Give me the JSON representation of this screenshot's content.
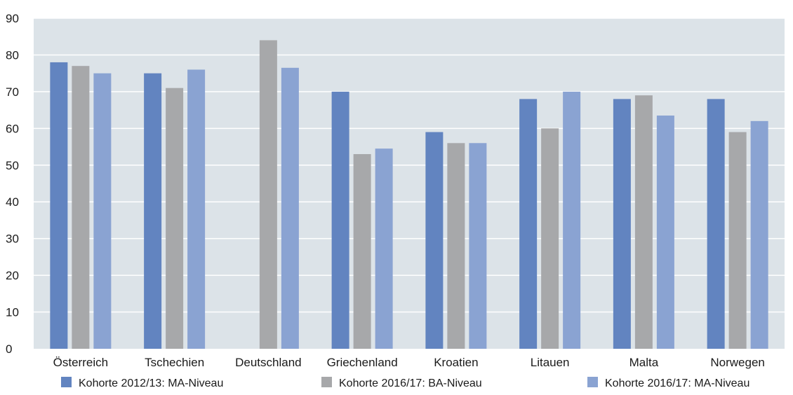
{
  "chart_data": {
    "type": "bar",
    "categories": [
      "Österreich",
      "Tschechien",
      "Deutschland",
      "Griechenland",
      "Kroatien",
      "Litauen",
      "Malta",
      "Norwegen"
    ],
    "series": [
      {
        "name": "Kohorte 2012/13: MA-Niveau",
        "color": "#6284c0",
        "values": [
          78,
          75,
          null,
          70,
          59,
          68,
          68,
          68
        ]
      },
      {
        "name": "Kohorte 2016/17: BA-Niveau",
        "color": "#a7a8aa",
        "values": [
          77,
          71,
          84,
          53,
          56,
          60,
          69,
          59
        ]
      },
      {
        "name": "Kohorte 2016/17: MA-Niveau",
        "color": "#8aa3d2",
        "values": [
          75,
          76,
          76.5,
          54.5,
          56,
          70,
          63.5,
          62
        ]
      }
    ],
    "ylim": [
      0,
      90
    ],
    "yticks": [
      0,
      10,
      20,
      30,
      40,
      50,
      60,
      70,
      80,
      90
    ],
    "grid": true,
    "legend_position": "bottom",
    "background_color": "#dce3e8",
    "grid_color": "#ffffff"
  }
}
